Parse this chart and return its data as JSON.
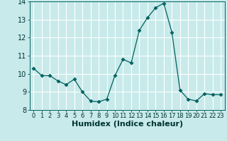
{
  "x": [
    0,
    1,
    2,
    3,
    4,
    5,
    6,
    7,
    8,
    9,
    10,
    11,
    12,
    13,
    14,
    15,
    16,
    17,
    18,
    19,
    20,
    21,
    22,
    23
  ],
  "y": [
    10.3,
    9.9,
    9.9,
    9.6,
    9.4,
    9.7,
    9.0,
    8.5,
    8.45,
    8.6,
    9.9,
    10.8,
    10.6,
    12.4,
    13.1,
    13.65,
    13.9,
    12.3,
    9.1,
    8.6,
    8.5,
    8.9,
    8.85,
    8.85
  ],
  "xlabel": "Humidex (Indice chaleur)",
  "ylim": [
    8,
    14
  ],
  "xlim_min": -0.5,
  "xlim_max": 23.5,
  "yticks": [
    8,
    9,
    10,
    11,
    12,
    13,
    14
  ],
  "xticks": [
    0,
    1,
    2,
    3,
    4,
    5,
    6,
    7,
    8,
    9,
    10,
    11,
    12,
    13,
    14,
    15,
    16,
    17,
    18,
    19,
    20,
    21,
    22,
    23
  ],
  "line_color": "#006060",
  "marker": "D",
  "marker_size": 2.5,
  "bg_color": "#c8eaea",
  "grid_color": "#ffffff",
  "plot_bg": "#c8eaea",
  "xlabel_fontsize": 8,
  "tick_fontsize": 7
}
